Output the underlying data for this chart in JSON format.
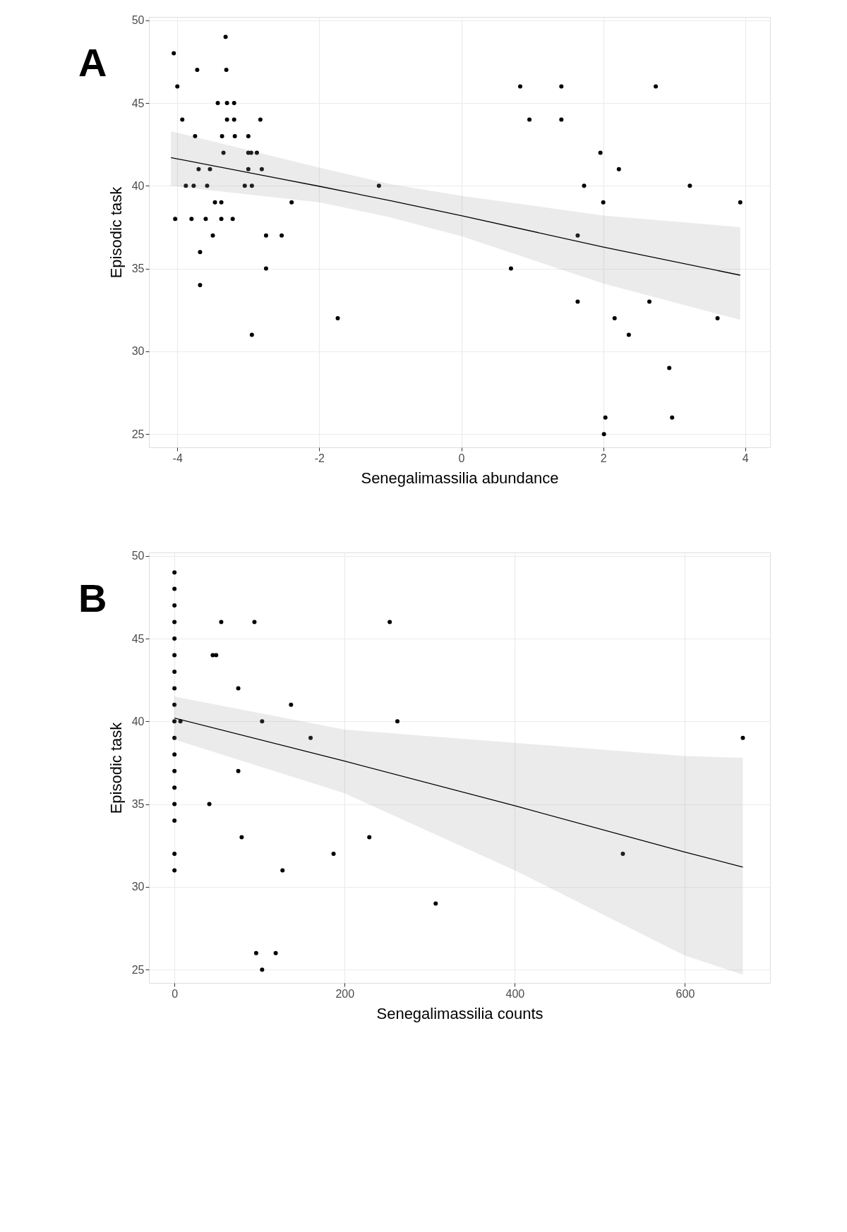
{
  "chart_data": [
    {
      "type": "scatter",
      "xlabel": "Senegalimassilia abundance",
      "ylabel": "Episodic task",
      "annotations": [
        "A"
      ],
      "xlim": [
        -4.4,
        4.35
      ],
      "ylim": [
        24.2,
        50.2
      ],
      "xticks": [
        -4,
        -2,
        0,
        2,
        4
      ],
      "yticks": [
        25,
        30,
        35,
        40,
        45,
        50
      ],
      "grid": true,
      "series": [
        {
          "type": "scatter",
          "color": "#000000",
          "marker": "circle",
          "x": [
            -4.05,
            -4.0,
            -3.93,
            -4.03,
            -3.72,
            -3.75,
            -3.88,
            -3.77,
            -3.7,
            -3.8,
            -3.68,
            -3.68,
            -3.32,
            -3.31,
            -3.43,
            -3.3,
            -3.2,
            -3.3,
            -3.2,
            -3.37,
            -3.19,
            -3.0,
            -3.35,
            -3.0,
            -2.96,
            -2.88,
            -3.54,
            -3.0,
            -2.81,
            -3.58,
            -3.05,
            -2.95,
            -3.47,
            -3.38,
            -2.39,
            -3.6,
            -3.38,
            -3.22,
            -3.5,
            -2.75,
            -2.53,
            -2.75,
            -2.95,
            -2.83,
            -1.74,
            -1.16,
            0.83,
            1.41,
            2.74,
            0.96,
            1.41,
            1.96,
            2.22,
            1.73,
            3.22,
            2.0,
            3.93,
            1.64,
            0.7,
            1.64,
            2.65,
            2.16,
            3.61,
            2.36,
            2.93,
            2.03,
            2.97,
            2.01
          ],
          "values": [
            48,
            46,
            44,
            38,
            47,
            43,
            40,
            40,
            41,
            38,
            36,
            34,
            49,
            47,
            45,
            45,
            45,
            44,
            44,
            43,
            43,
            43,
            42,
            42,
            42,
            42,
            41,
            41,
            41,
            40,
            40,
            40,
            39,
            39,
            39,
            38,
            38,
            38,
            37,
            37,
            37,
            35,
            31,
            44,
            32,
            40,
            46,
            46,
            46,
            44,
            44,
            42,
            41,
            40,
            40,
            39,
            39,
            37,
            35,
            33,
            33,
            32,
            32,
            31,
            29,
            26,
            26,
            25
          ]
        },
        {
          "type": "line",
          "color": "#000000",
          "line_style": "solid",
          "x": [
            -4.09,
            -2,
            -1,
            0,
            2,
            3.93
          ],
          "values": [
            41.7,
            39.97,
            39.1,
            38.2,
            36.3,
            34.6
          ],
          "lower": [
            40.0,
            39.0,
            38.1,
            36.95,
            34.1,
            31.9
          ],
          "upper": [
            43.3,
            41.1,
            40.1,
            39.4,
            38.2,
            37.5
          ]
        }
      ]
    },
    {
      "type": "scatter",
      "xlabel": "Senegalimassilia counts",
      "ylabel": "Episodic task",
      "annotations": [
        "B"
      ],
      "xlim": [
        -30,
        700
      ],
      "ylim": [
        24.2,
        50.2
      ],
      "xticks": [
        0,
        200,
        400,
        600
      ],
      "yticks": [
        25,
        30,
        35,
        40,
        45,
        50
      ],
      "grid": true,
      "series": [
        {
          "type": "scatter",
          "color": "#000000",
          "marker": "circle",
          "x": [
            0,
            0,
            0,
            0,
            0,
            0,
            0,
            0,
            0,
            0,
            0,
            0,
            0,
            0,
            0,
            0,
            0,
            0,
            7,
            55,
            94,
            253,
            45,
            49,
            75,
            137,
            103,
            262,
            160,
            75,
            41,
            79,
            229,
            187,
            127,
            307,
            96,
            119,
            103,
            527,
            668
          ],
          "values": [
            49,
            48,
            47,
            46,
            45,
            44,
            43,
            42,
            41,
            40,
            39,
            38,
            37,
            36,
            35,
            34,
            32,
            31,
            40,
            46,
            46,
            46,
            44,
            44,
            42,
            41,
            40,
            40,
            39,
            37,
            35,
            33,
            33,
            32,
            31,
            29,
            26,
            26,
            25,
            32,
            39
          ]
        },
        {
          "type": "line",
          "color": "#000000",
          "line_style": "solid",
          "x": [
            0,
            200,
            400,
            600,
            668
          ],
          "values": [
            40.2,
            37.6,
            34.9,
            32.1,
            31.2
          ],
          "lower": [
            38.9,
            35.65,
            31.0,
            25.85,
            24.7
          ],
          "upper": [
            41.5,
            39.5,
            38.7,
            37.9,
            37.8
          ]
        }
      ]
    }
  ]
}
